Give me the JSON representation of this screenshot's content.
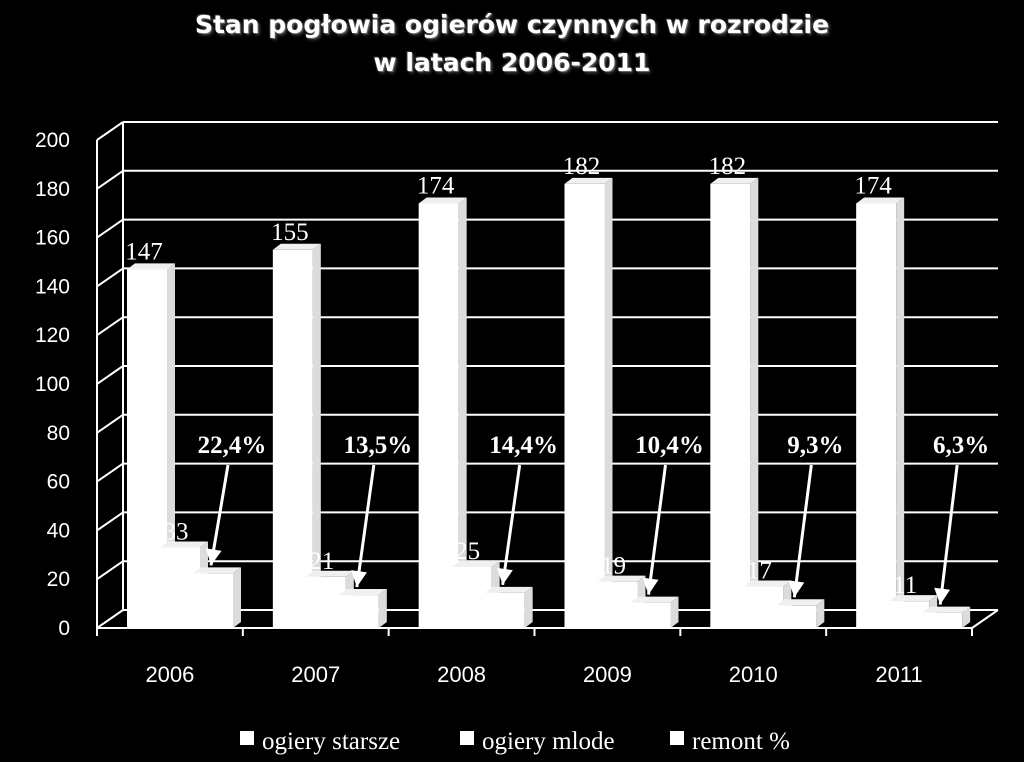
{
  "chart_data": {
    "type": "bar",
    "title": [
      "Stan pogłowia ogierów czynnych w rozrodzie",
      "w latach 2006-2011"
    ],
    "categories": [
      "2006",
      "2007",
      "2008",
      "2009",
      "2010",
      "2011"
    ],
    "series": [
      {
        "name": "ogiery starsze",
        "values": [
          147,
          155,
          174,
          182,
          182,
          174
        ],
        "labels": [
          "147",
          "155",
          "174",
          "182",
          "182",
          "174"
        ]
      },
      {
        "name": "ogiery mlode",
        "values": [
          33,
          21,
          25,
          19,
          17,
          11
        ],
        "labels": [
          "33",
          "21",
          "25",
          "19",
          "17",
          "11"
        ]
      },
      {
        "name": "remont %",
        "values": [
          22.4,
          13.5,
          14.4,
          10.4,
          9.3,
          6.3
        ],
        "labels": [
          "22,4%",
          "13,5%",
          "14,4%",
          "10,4%",
          "9,3%",
          "6,3%"
        ]
      }
    ],
    "yticks": [
      "0",
      "20",
      "40",
      "60",
      "80",
      "100",
      "120",
      "140",
      "160",
      "180",
      "200"
    ],
    "ylim": [
      0,
      200
    ],
    "grid": true,
    "legend": "bottom",
    "colors": {
      "bars": "#ffffff",
      "background": "#000000",
      "grid": "#ffffff"
    }
  }
}
